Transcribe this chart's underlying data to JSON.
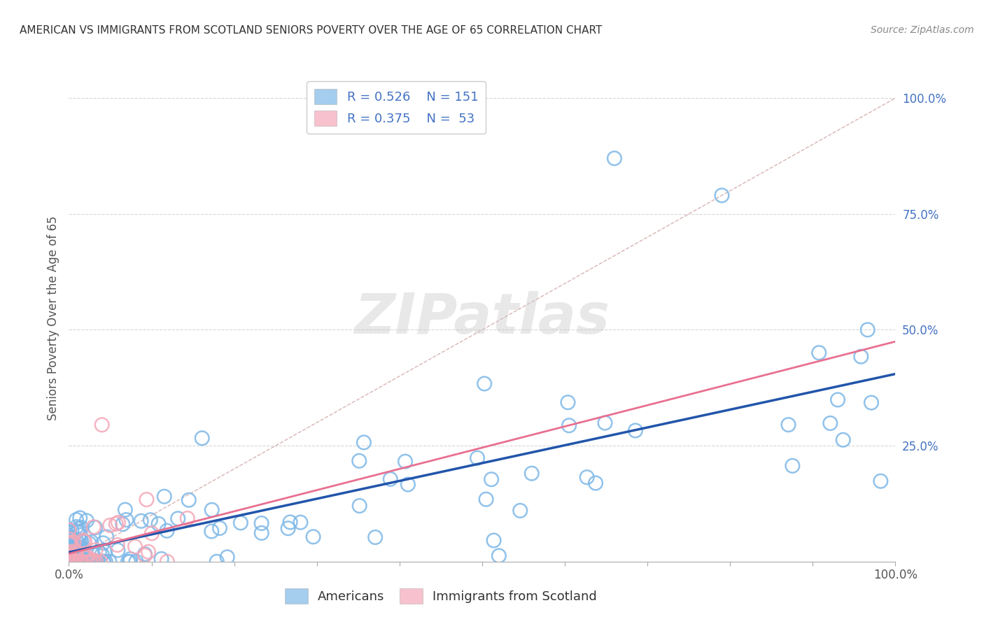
{
  "title": "AMERICAN VS IMMIGRANTS FROM SCOTLAND SENIORS POVERTY OVER THE AGE OF 65 CORRELATION CHART",
  "source": "Source: ZipAtlas.com",
  "ylabel": "Seniors Poverty Over the Age of 65",
  "legend_label_color": "#4472C4",
  "americans_color": "#7EB8E8",
  "scotland_color": "#F4A8B8",
  "americans_edge_color": "#5B9BD5",
  "scotland_edge_color": "#E87090",
  "americans_line_color": "#2255AA",
  "scotland_line_color": "#E87090",
  "diagonal_color": "#D0A0A0",
  "watermark_color": "#CCCCCC",
  "background_color": "#FFFFFF",
  "R_american": 0.526,
  "N_american": 151,
  "R_scotland": 0.375,
  "N_scotland": 53
}
